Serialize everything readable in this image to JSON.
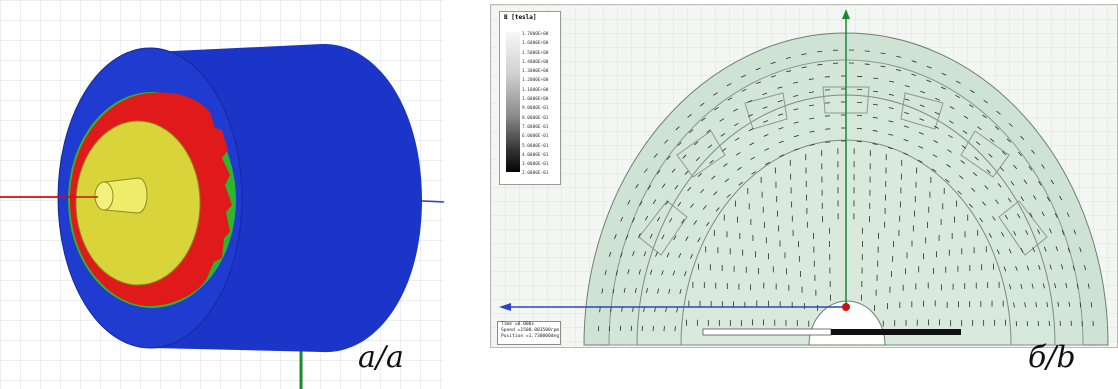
{
  "captions": {
    "left": "a/a",
    "right": "б/b"
  },
  "legend": {
    "title": "B [tesla]",
    "values": [
      "1.7000E+00",
      "1.6000E+00",
      "1.5000E+00",
      "1.4000E+00",
      "1.3000E+00",
      "1.2000E+00",
      "1.1000E+00",
      "1.0000E+00",
      "9.0000E-01",
      "8.0000E-01",
      "7.0000E-01",
      "6.0000E-01",
      "5.0000E-01",
      "4.0000E-01",
      "3.0000E-01",
      "2.0000E-01"
    ]
  },
  "status": {
    "time": "Time =0.000s",
    "speed": "Speed =1500.003508rpm",
    "position": "Position =1.730000deg"
  },
  "colors": {
    "stator": "#1a35c8",
    "rotor_core": "#2db52d",
    "magnets": "#e01a1a",
    "shaft_face": "#d8d43a",
    "field_region": "#cfe3d4",
    "axis_green": "#1a8a2e",
    "axis_blue": "#2a45c8",
    "axis_red": "#d01010"
  }
}
